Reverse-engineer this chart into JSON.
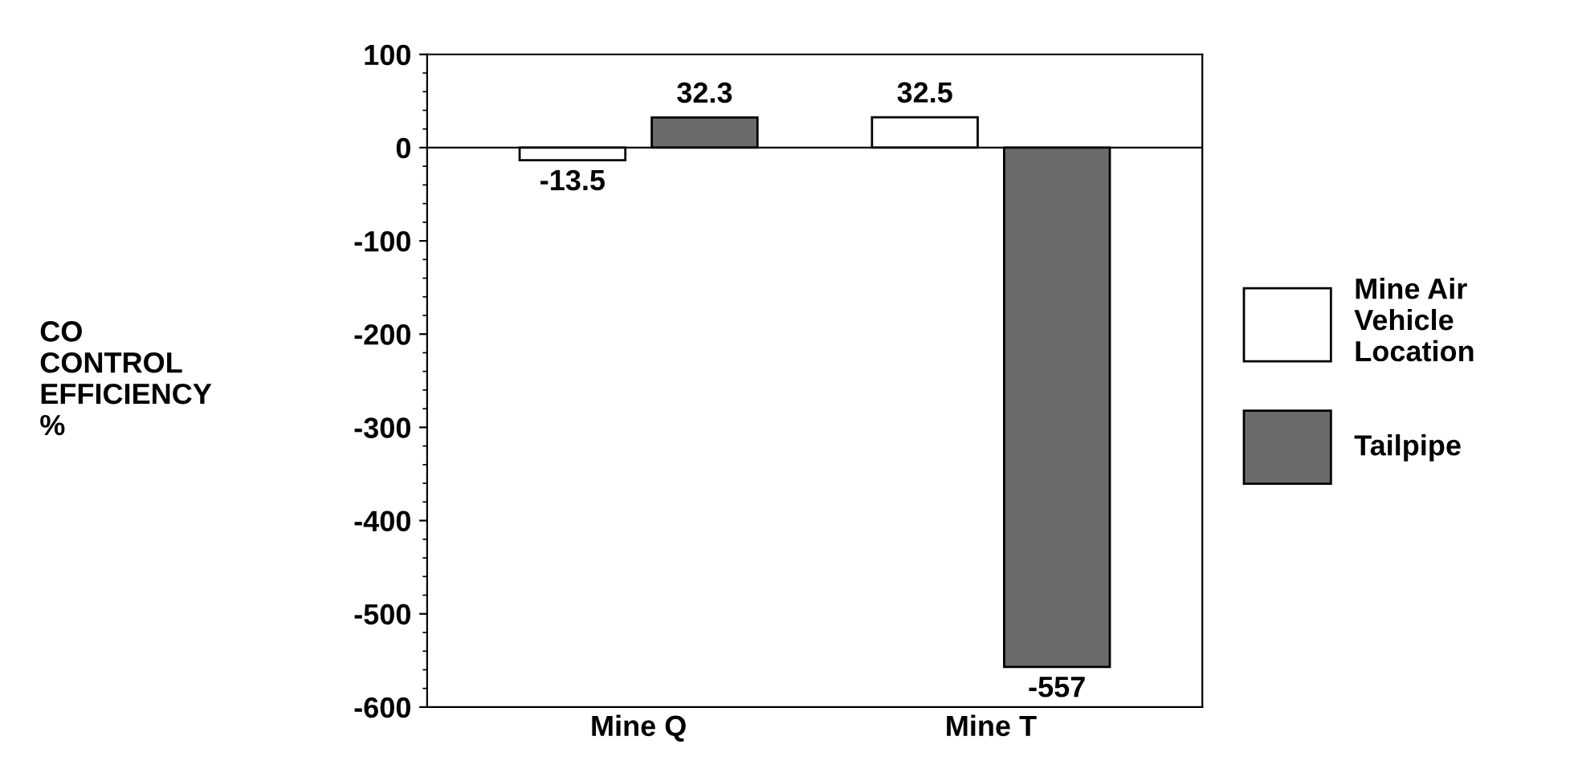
{
  "chart_data": {
    "type": "bar",
    "ylabel": "CO\nCONTROL\nEFFICIENCY\n%",
    "categories": [
      "Mine Q",
      "Mine T"
    ],
    "series": [
      {
        "name": "Mine Air\nVehicle\nLocation",
        "color": "#ffffff",
        "values": [
          -13.5,
          32.5
        ]
      },
      {
        "name": "Tailpipe",
        "color": "#6b6b6b",
        "values": [
          32.3,
          -557
        ]
      }
    ],
    "ylim": [
      -600,
      100
    ],
    "yticks": [
      -600,
      -500,
      -400,
      -300,
      -200,
      -100,
      0,
      100
    ],
    "data_labels": true,
    "legend": "right",
    "grid": false,
    "ref_lines": [
      {
        "axis": "y",
        "value": 0
      }
    ]
  }
}
